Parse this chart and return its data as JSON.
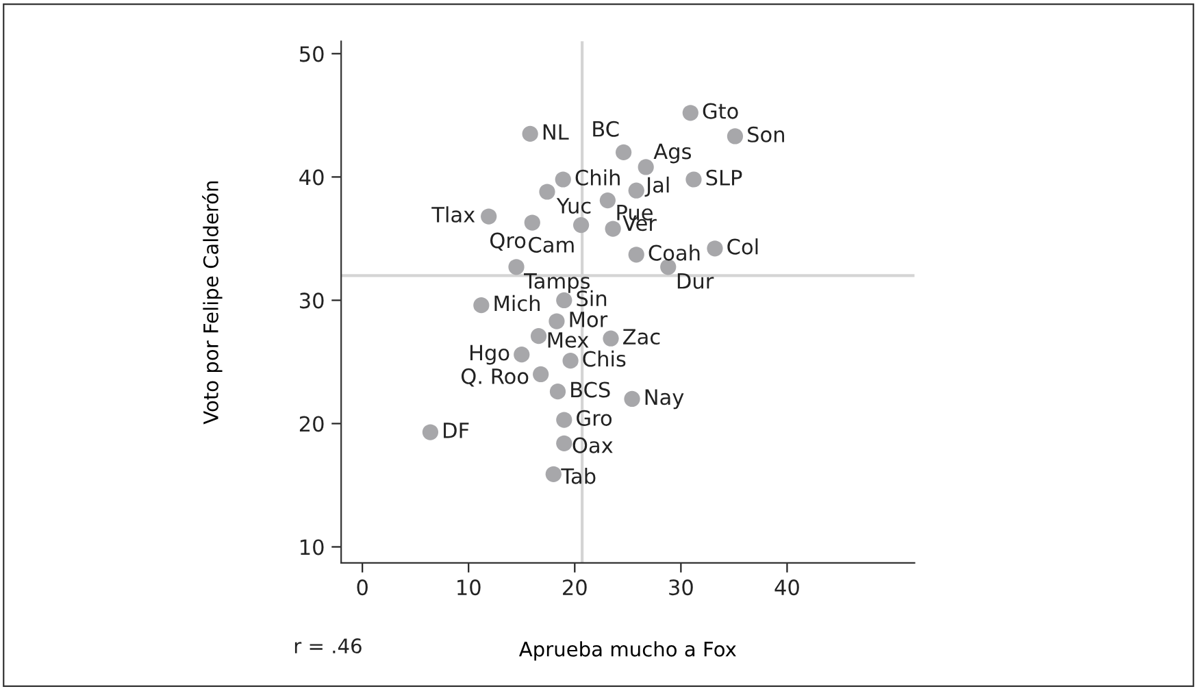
{
  "chart_data": {
    "type": "scatter",
    "xlabel": "Aprueba mucho a Fox",
    "ylabel": "Voto por Felipe Calderón",
    "xlim": [
      -2,
      52
    ],
    "ylim": [
      8.7,
      51
    ],
    "xticks": [
      0,
      10,
      20,
      30,
      40
    ],
    "yticks": [
      10,
      20,
      30,
      40,
      50
    ],
    "grid": false,
    "marker": "circle",
    "series": [
      {
        "color": "#a7a7aa",
        "x": [
          30.9,
          15.8,
          35.1,
          24.6,
          26.7,
          18.9,
          31.2,
          17.4,
          25.8,
          23.1,
          11.9,
          16.0,
          20.6,
          23.6,
          33.2,
          25.8,
          14.5,
          28.8,
          19.0,
          11.2,
          18.3,
          16.6,
          23.4,
          15.0,
          19.6,
          16.8,
          18.4,
          25.4,
          19.0,
          6.4,
          19.0,
          18.0
        ],
        "values": [
          45.2,
          43.5,
          43.3,
          42.0,
          40.8,
          39.8,
          39.8,
          38.8,
          38.9,
          38.1,
          36.8,
          36.3,
          36.1,
          35.8,
          34.2,
          33.7,
          32.7,
          32.7,
          30.0,
          29.6,
          28.3,
          27.1,
          26.9,
          25.6,
          25.1,
          24.0,
          22.6,
          22.0,
          20.3,
          19.3,
          18.4,
          15.9
        ]
      }
    ],
    "ref_lines": [
      {
        "axis": "y",
        "value": 32,
        "color": "#d4d4d4"
      },
      {
        "axis": "x",
        "value": 20.7,
        "color": "#d4d4d4"
      }
    ],
    "annotations": [
      {
        "text": "Gto",
        "x": 30.9,
        "y": 45.2
      },
      {
        "text": "NL",
        "x": 15.8,
        "y": 43.5
      },
      {
        "text": "Son",
        "x": 35.1,
        "y": 43.3
      },
      {
        "text": "BC",
        "x": 24.6,
        "y": 42.0
      },
      {
        "text": "Ags",
        "x": 26.7,
        "y": 40.8
      },
      {
        "text": "Chih",
        "x": 18.9,
        "y": 39.8
      },
      {
        "text": "SLP",
        "x": 31.2,
        "y": 39.8
      },
      {
        "text": "Yuc",
        "x": 17.4,
        "y": 38.8
      },
      {
        "text": "Jal",
        "x": 25.8,
        "y": 38.9
      },
      {
        "text": "Pue",
        "x": 23.1,
        "y": 38.1
      },
      {
        "text": "Tlax",
        "x": 11.9,
        "y": 36.8
      },
      {
        "text": "Qro",
        "x": 16.0,
        "y": 36.3
      },
      {
        "text": "Cam",
        "x": 20.6,
        "y": 36.1
      },
      {
        "text": "Ver",
        "x": 23.6,
        "y": 35.8
      },
      {
        "text": "Col",
        "x": 33.2,
        "y": 34.2
      },
      {
        "text": "Coah",
        "x": 25.8,
        "y": 33.7
      },
      {
        "text": "Tamps",
        "x": 14.5,
        "y": 32.7
      },
      {
        "text": "Dur",
        "x": 28.8,
        "y": 32.7
      },
      {
        "text": "Sin",
        "x": 19.0,
        "y": 30.0
      },
      {
        "text": "Mich",
        "x": 11.2,
        "y": 29.6
      },
      {
        "text": "Mor",
        "x": 18.3,
        "y": 28.3
      },
      {
        "text": "Mex",
        "x": 16.6,
        "y": 27.1
      },
      {
        "text": "Zac",
        "x": 23.4,
        "y": 26.9
      },
      {
        "text": "Hgo",
        "x": 15.0,
        "y": 25.6
      },
      {
        "text": "Chis",
        "x": 19.6,
        "y": 25.1
      },
      {
        "text": "Q. Roo",
        "x": 16.8,
        "y": 24.0
      },
      {
        "text": "BCS",
        "x": 18.4,
        "y": 22.6
      },
      {
        "text": "Nay",
        "x": 25.4,
        "y": 22.0
      },
      {
        "text": "Gro",
        "x": 19.0,
        "y": 20.3
      },
      {
        "text": "DF",
        "x": 6.4,
        "y": 19.3
      },
      {
        "text": "Oax",
        "x": 19.0,
        "y": 18.4
      },
      {
        "text": "Tab",
        "x": 18.0,
        "y": 15.9
      },
      "r = .46"
    ]
  }
}
